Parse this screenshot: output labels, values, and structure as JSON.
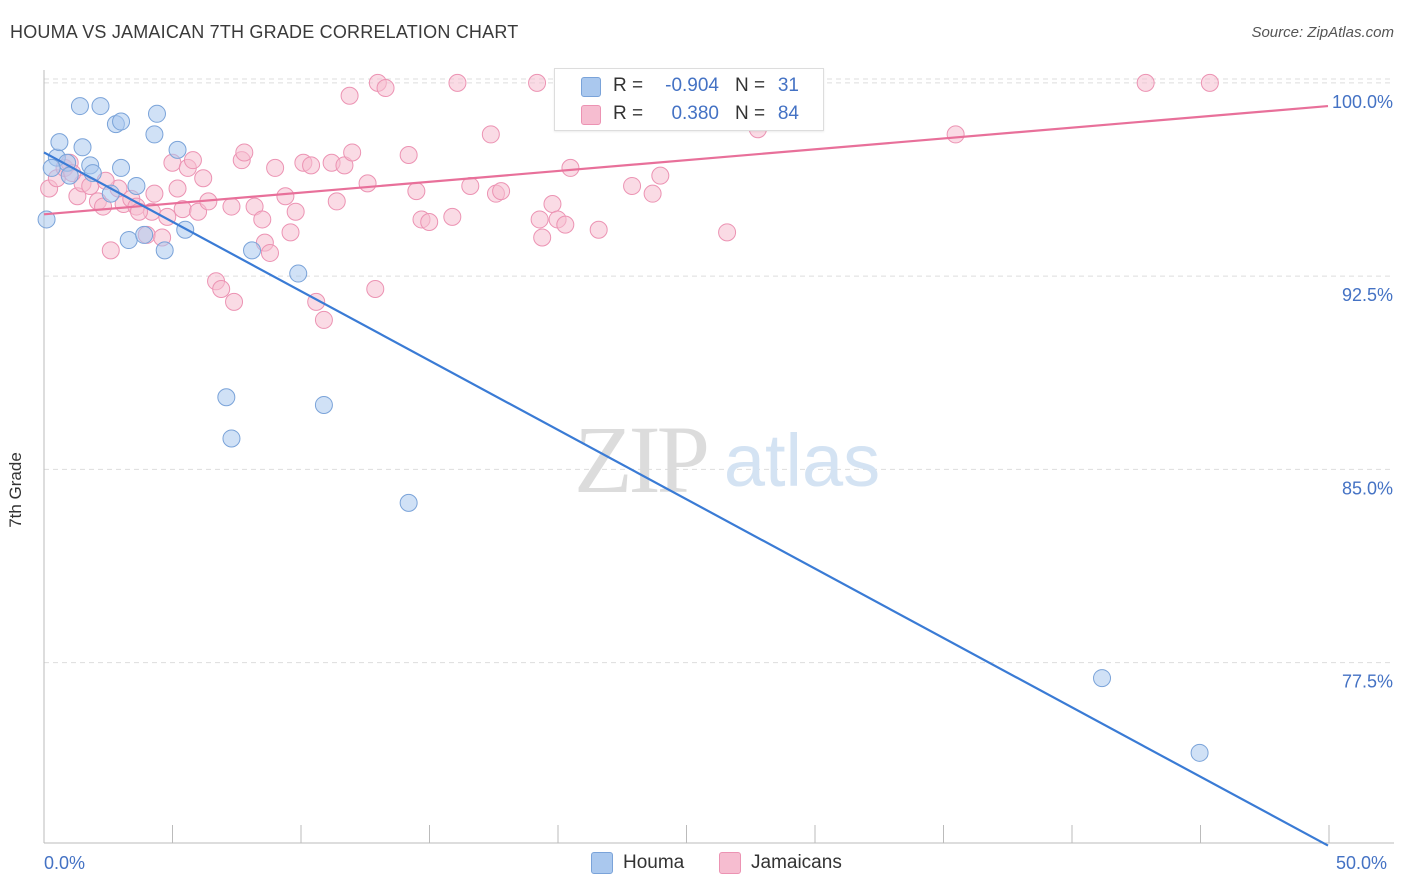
{
  "title": "HOUMA VS JAMAICAN 7TH GRADE CORRELATION CHART",
  "source": "Source: ZipAtlas.com",
  "watermark": {
    "zip": "ZIP",
    "atlas": "atlas"
  },
  "colors": {
    "houma_fill": "#aac8ee",
    "houma_stroke": "#7aa3d9",
    "houma_line": "#3a7bd5",
    "jam_fill": "#f6bdd0",
    "jam_stroke": "#ec93b3",
    "jam_line": "#e8709a",
    "tick_text": "#4472c4",
    "grid": "#dddddd"
  },
  "legend": {
    "items": [
      {
        "label": "Houma",
        "color": "#aac8ee",
        "border": "#7aa3d9"
      },
      {
        "label": "Jamaicans",
        "color": "#f6bdd0",
        "border": "#ec93b3"
      }
    ]
  },
  "correlation_box": {
    "rows": [
      {
        "r_label": "R =",
        "r_value": "-0.904",
        "n_label": "N =",
        "n_value": "31",
        "color": "#aac8ee",
        "border": "#7aa3d9"
      },
      {
        "r_label": "R =",
        "r_value": "0.380",
        "n_label": "N =",
        "n_value": "84",
        "color": "#f6bdd0",
        "border": "#ec93b3"
      }
    ]
  },
  "chart_data": {
    "type": "scatter",
    "title": "HOUMA VS JAMAICAN 7TH GRADE CORRELATION CHART",
    "xlabel": "",
    "ylabel": "7th Grade",
    "xlim": [
      0,
      50
    ],
    "ylim": [
      70.5,
      100.5
    ],
    "x_tick_labels": [
      "0.0%",
      "50.0%"
    ],
    "y_ticks": [
      {
        "value": 100,
        "label": "100.0%"
      },
      {
        "value": 92.5,
        "label": "92.5%"
      },
      {
        "value": 85,
        "label": "85.0%"
      },
      {
        "value": 77.5,
        "label": "77.5%"
      }
    ],
    "grid": "horizontal dashed",
    "series": [
      {
        "name": "Houma",
        "trend": {
          "x": [
            0,
            50
          ],
          "y": [
            97.3,
            70.4
          ]
        },
        "points": [
          {
            "x": 0.1,
            "y": 94.7
          },
          {
            "x": 0.5,
            "y": 97.1
          },
          {
            "x": 0.6,
            "y": 97.7
          },
          {
            "x": 0.9,
            "y": 96.9
          },
          {
            "x": 1.0,
            "y": 96.4
          },
          {
            "x": 1.4,
            "y": 99.1
          },
          {
            "x": 1.5,
            "y": 97.5
          },
          {
            "x": 1.8,
            "y": 96.8
          },
          {
            "x": 1.9,
            "y": 96.5
          },
          {
            "x": 2.2,
            "y": 99.1
          },
          {
            "x": 2.6,
            "y": 95.7
          },
          {
            "x": 2.8,
            "y": 98.4
          },
          {
            "x": 3.0,
            "y": 98.5
          },
          {
            "x": 3.0,
            "y": 96.7
          },
          {
            "x": 3.3,
            "y": 93.9
          },
          {
            "x": 3.6,
            "y": 96.0
          },
          {
            "x": 3.9,
            "y": 94.1
          },
          {
            "x": 4.3,
            "y": 98.0
          },
          {
            "x": 4.4,
            "y": 98.8
          },
          {
            "x": 4.7,
            "y": 93.5
          },
          {
            "x": 5.2,
            "y": 97.4
          },
          {
            "x": 5.5,
            "y": 94.3
          },
          {
            "x": 7.1,
            "y": 87.8
          },
          {
            "x": 7.3,
            "y": 86.2
          },
          {
            "x": 8.1,
            "y": 93.5
          },
          {
            "x": 9.9,
            "y": 92.6
          },
          {
            "x": 10.9,
            "y": 87.5
          },
          {
            "x": 14.2,
            "y": 83.7
          },
          {
            "x": 41.2,
            "y": 76.9
          },
          {
            "x": 45.0,
            "y": 74.0
          },
          {
            "x": 0.3,
            "y": 96.7
          }
        ]
      },
      {
        "name": "Jamaicans",
        "trend": {
          "x": [
            0,
            50
          ],
          "y": [
            94.9,
            99.1
          ]
        },
        "points": [
          {
            "x": 0.2,
            "y": 95.9
          },
          {
            "x": 0.5,
            "y": 96.3
          },
          {
            "x": 0.8,
            "y": 96.7
          },
          {
            "x": 1.0,
            "y": 96.9
          },
          {
            "x": 1.3,
            "y": 95.6
          },
          {
            "x": 1.5,
            "y": 96.1
          },
          {
            "x": 1.8,
            "y": 96.0
          },
          {
            "x": 2.1,
            "y": 95.4
          },
          {
            "x": 2.3,
            "y": 95.2
          },
          {
            "x": 2.6,
            "y": 93.5
          },
          {
            "x": 2.9,
            "y": 95.9
          },
          {
            "x": 3.1,
            "y": 95.3
          },
          {
            "x": 3.4,
            "y": 95.5
          },
          {
            "x": 3.6,
            "y": 95.2
          },
          {
            "x": 4.0,
            "y": 94.1
          },
          {
            "x": 4.2,
            "y": 95.0
          },
          {
            "x": 4.3,
            "y": 95.7
          },
          {
            "x": 4.6,
            "y": 94.0
          },
          {
            "x": 4.8,
            "y": 94.8
          },
          {
            "x": 5.0,
            "y": 96.9
          },
          {
            "x": 5.2,
            "y": 95.9
          },
          {
            "x": 5.4,
            "y": 95.1
          },
          {
            "x": 5.6,
            "y": 96.7
          },
          {
            "x": 5.8,
            "y": 97.0
          },
          {
            "x": 6.0,
            "y": 95.0
          },
          {
            "x": 6.2,
            "y": 96.3
          },
          {
            "x": 6.4,
            "y": 95.4
          },
          {
            "x": 6.7,
            "y": 92.3
          },
          {
            "x": 6.9,
            "y": 92.0
          },
          {
            "x": 7.3,
            "y": 95.2
          },
          {
            "x": 7.4,
            "y": 91.5
          },
          {
            "x": 7.7,
            "y": 97.0
          },
          {
            "x": 7.8,
            "y": 97.3
          },
          {
            "x": 8.2,
            "y": 95.2
          },
          {
            "x": 8.5,
            "y": 94.7
          },
          {
            "x": 8.6,
            "y": 93.8
          },
          {
            "x": 8.8,
            "y": 93.4
          },
          {
            "x": 9.0,
            "y": 96.7
          },
          {
            "x": 9.4,
            "y": 95.6
          },
          {
            "x": 9.6,
            "y": 94.2
          },
          {
            "x": 9.8,
            "y": 95.0
          },
          {
            "x": 10.1,
            "y": 96.9
          },
          {
            "x": 10.4,
            "y": 96.8
          },
          {
            "x": 10.6,
            "y": 91.5
          },
          {
            "x": 10.9,
            "y": 90.8
          },
          {
            "x": 11.2,
            "y": 96.9
          },
          {
            "x": 11.4,
            "y": 95.4
          },
          {
            "x": 11.7,
            "y": 96.8
          },
          {
            "x": 11.9,
            "y": 99.5
          },
          {
            "x": 12.0,
            "y": 97.3
          },
          {
            "x": 12.6,
            "y": 96.1
          },
          {
            "x": 12.9,
            "y": 92.0
          },
          {
            "x": 13.0,
            "y": 100.0
          },
          {
            "x": 13.3,
            "y": 99.8
          },
          {
            "x": 14.2,
            "y": 97.2
          },
          {
            "x": 14.5,
            "y": 95.8
          },
          {
            "x": 14.7,
            "y": 94.7
          },
          {
            "x": 15.0,
            "y": 94.6
          },
          {
            "x": 15.9,
            "y": 94.8
          },
          {
            "x": 16.1,
            "y": 100.0
          },
          {
            "x": 16.6,
            "y": 96.0
          },
          {
            "x": 17.4,
            "y": 98.0
          },
          {
            "x": 17.6,
            "y": 95.7
          },
          {
            "x": 17.8,
            "y": 95.8
          },
          {
            "x": 19.2,
            "y": 100.0
          },
          {
            "x": 19.3,
            "y": 94.7
          },
          {
            "x": 19.4,
            "y": 94.0
          },
          {
            "x": 19.8,
            "y": 95.3
          },
          {
            "x": 20.0,
            "y": 94.7
          },
          {
            "x": 20.3,
            "y": 94.5
          },
          {
            "x": 20.5,
            "y": 96.7
          },
          {
            "x": 21.6,
            "y": 94.3
          },
          {
            "x": 22.9,
            "y": 96.0
          },
          {
            "x": 23.7,
            "y": 95.7
          },
          {
            "x": 24.0,
            "y": 96.4
          },
          {
            "x": 26.6,
            "y": 94.2
          },
          {
            "x": 27.3,
            "y": 100.0
          },
          {
            "x": 27.8,
            "y": 98.2
          },
          {
            "x": 35.5,
            "y": 98.0
          },
          {
            "x": 42.9,
            "y": 100.0
          },
          {
            "x": 45.4,
            "y": 100.0
          },
          {
            "x": 3.7,
            "y": 95.0
          },
          {
            "x": 2.4,
            "y": 96.2
          },
          {
            "x": 1.1,
            "y": 96.5
          }
        ]
      }
    ]
  }
}
